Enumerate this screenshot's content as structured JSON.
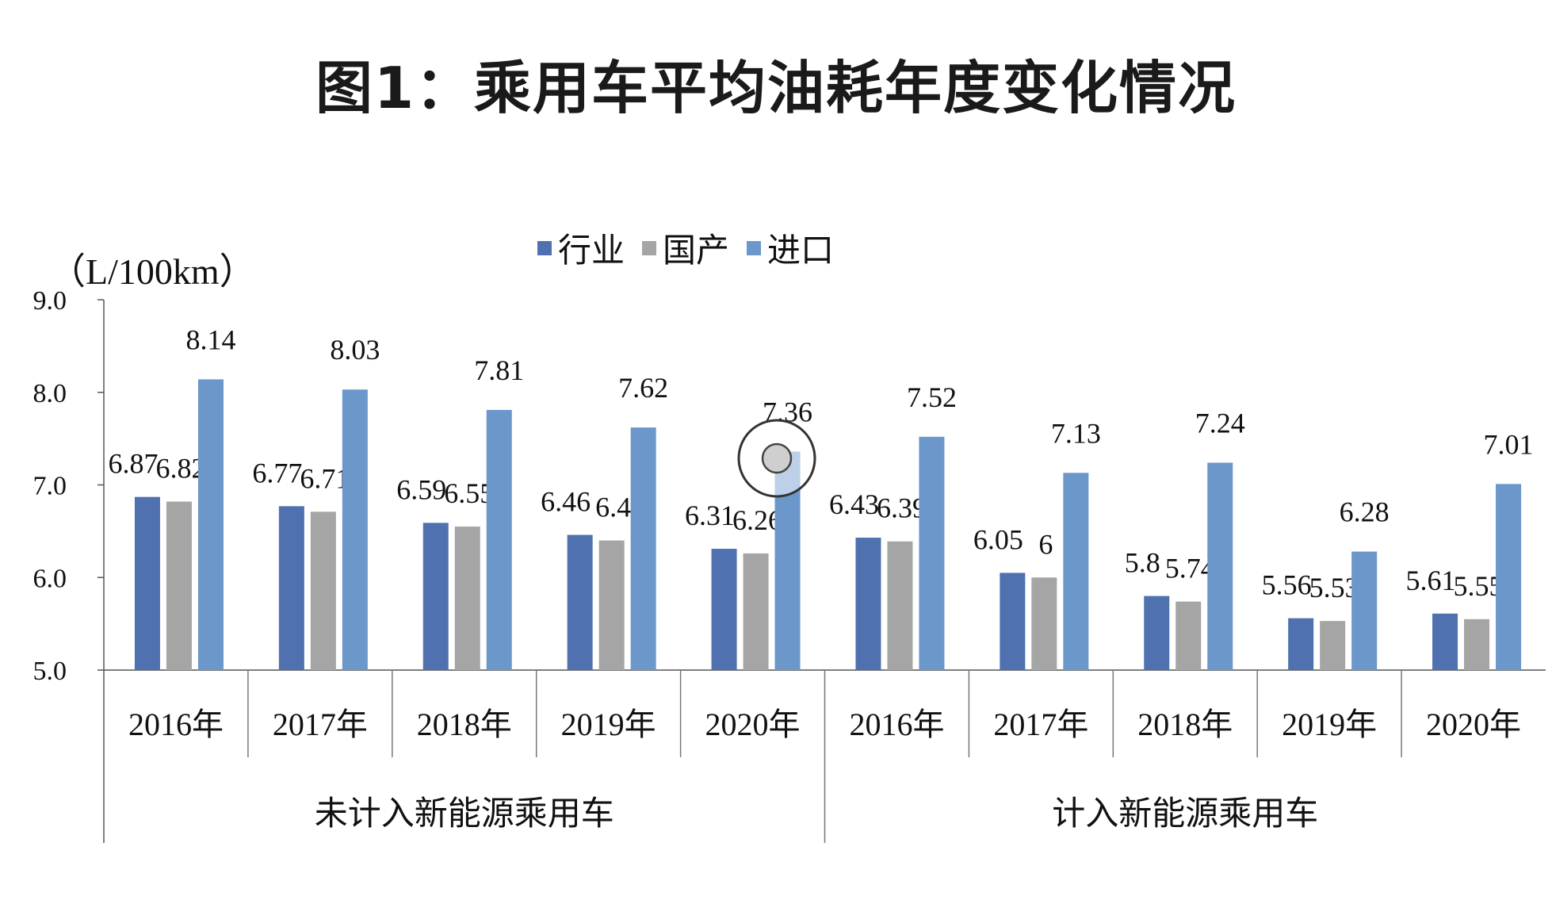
{
  "title": "图1：乘用车平均油耗年度变化情况",
  "chart_data": {
    "type": "bar",
    "unit": "（L/100km）",
    "ylim": [
      5.0,
      9.0
    ],
    "yticks": [
      "5.0",
      "6.0",
      "7.0",
      "8.0",
      "9.0"
    ],
    "groups": [
      {
        "label": "未计入新能源乘用车",
        "categories": [
          "2016年",
          "2017年",
          "2018年",
          "2019年",
          "2020年"
        ]
      },
      {
        "label": "计入新能源乘用车",
        "categories": [
          "2016年",
          "2017年",
          "2018年",
          "2019年",
          "2020年"
        ]
      }
    ],
    "legend_position": "top",
    "series": [
      {
        "name": "行业",
        "color": "#4f71af",
        "values": [
          6.87,
          6.77,
          6.59,
          6.46,
          6.31,
          6.43,
          6.05,
          5.8,
          5.56,
          5.61
        ]
      },
      {
        "name": "国产",
        "color": "#a5a5a5",
        "values": [
          6.82,
          6.71,
          6.55,
          6.4,
          6.26,
          6.39,
          6,
          5.74,
          5.53,
          5.55
        ]
      },
      {
        "name": "进口",
        "color": "#6b97cb",
        "values": [
          8.14,
          8.03,
          7.81,
          7.62,
          7.36,
          7.52,
          7.13,
          7.24,
          6.28,
          7.01
        ]
      }
    ]
  }
}
